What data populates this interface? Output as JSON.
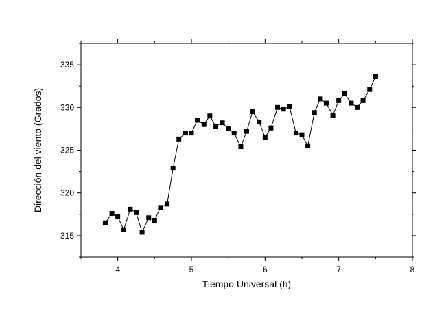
{
  "chart_data": {
    "type": "line",
    "title": "",
    "xlabel": "Tiempo Universal (h)",
    "ylabel": "Dirección del viento (Grados)",
    "xlim": [
      3.5,
      8
    ],
    "ylim": [
      312.5,
      337.5
    ],
    "xticks": [
      4,
      5,
      6,
      7,
      8
    ],
    "yticks": [
      315,
      320,
      325,
      330,
      335
    ],
    "grid": false,
    "legend": "none",
    "marker": "square",
    "colors": {
      "line": "#000000",
      "marker": "#000000"
    },
    "series": [
      {
        "x": [
          3.83,
          3.92,
          4.0,
          4.08,
          4.17,
          4.25,
          4.33,
          4.42,
          4.5,
          4.58,
          4.67,
          4.75,
          4.83,
          4.92,
          5.0,
          5.08,
          5.17,
          5.25,
          5.33,
          5.42,
          5.5,
          5.58,
          5.67,
          5.75,
          5.83,
          5.92,
          6.0,
          6.08,
          6.17,
          6.25,
          6.33,
          6.42,
          6.5,
          6.58,
          6.67,
          6.75,
          6.83,
          6.92,
          7.0,
          7.08,
          7.17,
          7.25,
          7.33,
          7.42,
          7.5
        ],
        "y": [
          316.5,
          317.6,
          317.2,
          315.7,
          318.1,
          317.7,
          315.4,
          317.1,
          316.8,
          318.3,
          318.7,
          322.9,
          326.3,
          327.0,
          327.0,
          328.5,
          328.0,
          329.0,
          327.8,
          328.2,
          327.5,
          327.0,
          325.4,
          327.2,
          329.5,
          328.3,
          326.5,
          327.6,
          330.0,
          329.8,
          330.1,
          327.0,
          326.8,
          325.5,
          329.4,
          331.0,
          330.5,
          329.1,
          330.8,
          331.6,
          330.5,
          330.0,
          330.8,
          332.1,
          333.6
        ]
      }
    ]
  }
}
